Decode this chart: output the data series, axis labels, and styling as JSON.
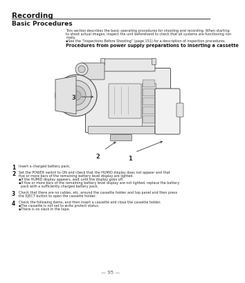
{
  "title": "Recording",
  "subtitle": "Basic Procedures",
  "bg_color": "#ffffff",
  "title_color": "#1a1a1a",
  "text_color": "#2a2a2a",
  "gray_text": "#555555",
  "line_color": "#444444",
  "intro_text_lines": [
    "This section describes the basic operating procedures for shooting and recording. When starting",
    "to shoot actual images, inspect the unit beforehand to check that all systems are functioning nor-",
    "mally."
  ],
  "bullet_intro": "▪See the “Inspections Before Shooting” (page 151) for a description of inspection procedures.",
  "section_heading": "Procedures from power supply preparations to inserting a cassette",
  "steps": [
    {
      "num": "1",
      "lines": [
        "Insert a charged battery pack."
      ]
    },
    {
      "num": "2",
      "lines": [
        "Set the POWER switch to ON and check that the HUMID display does not appear and that",
        "five or more bars of the remaining battery level display are lighted.",
        "▪If the HUMID display appears, wait until the display goes off.",
        "▪If five or more bars of the remaining battery level display are not lighted, replace the battery",
        "  pack with a sufficiently charged battery pack."
      ]
    },
    {
      "num": "3",
      "lines": [
        "Check that there are no cables, etc. around the cassette holder and top panel and then press",
        "the EJECT button to open the cassette holder."
      ]
    },
    {
      "num": "4",
      "lines": [
        "Check the following items, and then insert a cassette and close the cassette holder.",
        "▪The cassette is not set to write protect status.",
        "▪There is no slack in the tape."
      ]
    }
  ],
  "page_number": "— 95 —",
  "title_fontsize": 7.5,
  "subtitle_fontsize": 6.5,
  "body_fontsize": 3.5,
  "heading_fontsize": 4.8,
  "step_num_fontsize": 5.5,
  "page_num_fontsize": 5.0,
  "label_fontsize": 6.0
}
